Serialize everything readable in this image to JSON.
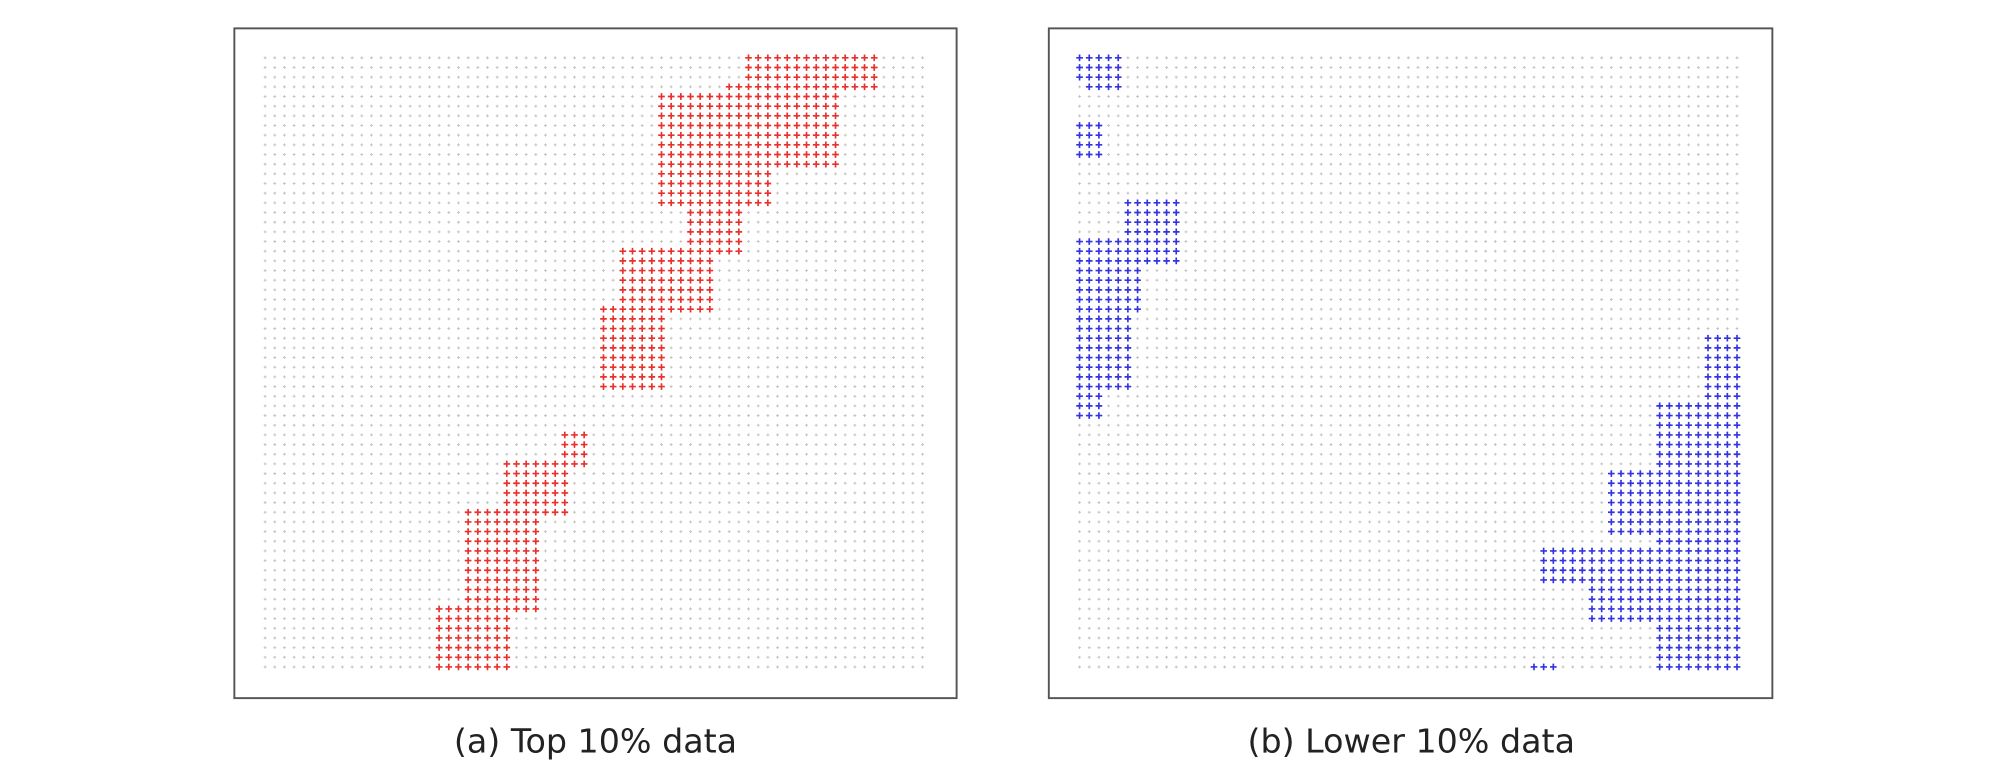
{
  "panels": [
    {
      "caption": "(a) Top 10% data"
    },
    {
      "caption": "(b) Lower 10% data"
    }
  ]
}
